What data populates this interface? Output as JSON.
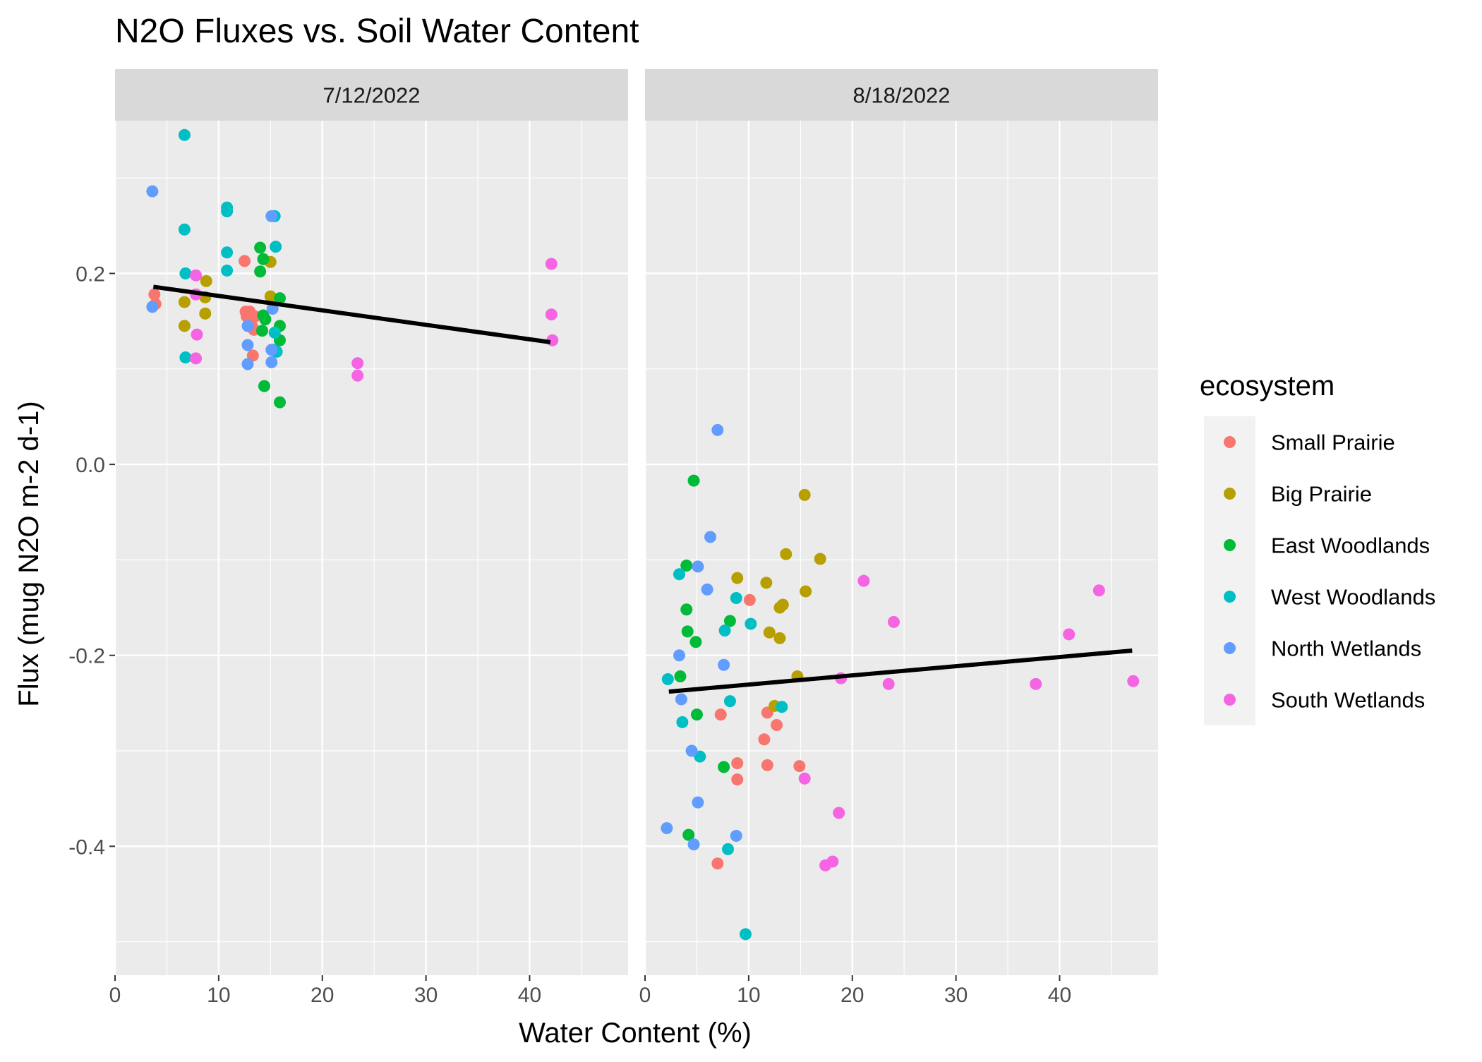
{
  "chart_data": {
    "type": "scatter",
    "title": "N2O Fluxes vs. Soil Water Content",
    "xlabel": "Water Content (%)",
    "ylabel": "Flux (mug N2O m-2 d-1)",
    "xlim": [
      0,
      49.5
    ],
    "ylim": [
      -0.535,
      0.36
    ],
    "x_ticks": [
      0,
      10,
      20,
      30,
      40
    ],
    "y_ticks": [
      -0.4,
      -0.2,
      0.0,
      0.2
    ],
    "x_tick_labels": [
      "0",
      "10",
      "20",
      "30",
      "40"
    ],
    "y_tick_labels": [
      "-0.4",
      "-0.2",
      "0.0",
      "0.2"
    ],
    "grid": true,
    "legend": {
      "title": "ecosystem",
      "position": "right",
      "entries": [
        {
          "name": "Small Prairie",
          "color": "#F8766D"
        },
        {
          "name": "Big Prairie",
          "color": "#B79F00"
        },
        {
          "name": "East Woodlands",
          "color": "#00BA38"
        },
        {
          "name": "West Woodlands",
          "color": "#00BFC4"
        },
        {
          "name": "North Wetlands",
          "color": "#619CFF"
        },
        {
          "name": "South Wetlands",
          "color": "#F564E3"
        }
      ]
    },
    "facets": [
      {
        "label": "7/12/2022",
        "trend_line": {
          "x": [
            3.7,
            42.0
          ],
          "y": [
            0.186,
            0.128
          ]
        },
        "series": [
          {
            "name": "Small Prairie",
            "points": [
              [
                3.8,
                0.178
              ],
              [
                3.9,
                0.168
              ],
              [
                12.5,
                0.213
              ],
              [
                12.6,
                0.16
              ],
              [
                12.7,
                0.155
              ],
              [
                13.0,
                0.16
              ],
              [
                13.2,
                0.145
              ],
              [
                13.4,
                0.141
              ],
              [
                13.3,
                0.114
              ],
              [
                13.5,
                0.155
              ],
              [
                13.0,
                0.15
              ]
            ]
          },
          {
            "name": "Big Prairie",
            "points": [
              [
                6.7,
                0.17
              ],
              [
                6.7,
                0.145
              ],
              [
                8.8,
                0.192
              ],
              [
                8.7,
                0.175
              ],
              [
                8.7,
                0.158
              ],
              [
                15.0,
                0.212
              ],
              [
                15.0,
                0.176
              ]
            ]
          },
          {
            "name": "East Woodlands",
            "points": [
              [
                14.0,
                0.227
              ],
              [
                14.3,
                0.215
              ],
              [
                14.0,
                0.202
              ],
              [
                14.3,
                0.156
              ],
              [
                14.5,
                0.152
              ],
              [
                14.2,
                0.14
              ],
              [
                15.9,
                0.174
              ],
              [
                15.9,
                0.145
              ],
              [
                15.9,
                0.13
              ],
              [
                14.4,
                0.082
              ],
              [
                15.9,
                0.065
              ]
            ]
          },
          {
            "name": "West Woodlands",
            "points": [
              [
                6.7,
                0.345
              ],
              [
                6.7,
                0.246
              ],
              [
                6.8,
                0.2
              ],
              [
                6.8,
                0.112
              ],
              [
                10.8,
                0.269
              ],
              [
                10.8,
                0.265
              ],
              [
                10.8,
                0.222
              ],
              [
                10.8,
                0.203
              ],
              [
                15.4,
                0.26
              ],
              [
                15.5,
                0.228
              ],
              [
                15.4,
                0.138
              ],
              [
                15.3,
                0.12
              ],
              [
                15.6,
                0.118
              ]
            ]
          },
          {
            "name": "North Wetlands",
            "points": [
              [
                3.6,
                0.286
              ],
              [
                3.6,
                0.165
              ],
              [
                12.8,
                0.145
              ],
              [
                12.8,
                0.125
              ],
              [
                12.8,
                0.105
              ],
              [
                15.1,
                0.26
              ],
              [
                15.2,
                0.163
              ],
              [
                15.1,
                0.12
              ],
              [
                15.1,
                0.107
              ]
            ]
          },
          {
            "name": "South Wetlands",
            "points": [
              [
                7.8,
                0.198
              ],
              [
                7.8,
                0.178
              ],
              [
                7.9,
                0.136
              ],
              [
                7.8,
                0.111
              ],
              [
                23.4,
                0.106
              ],
              [
                23.4,
                0.093
              ],
              [
                42.1,
                0.21
              ],
              [
                42.1,
                0.157
              ],
              [
                42.2,
                0.13
              ]
            ]
          }
        ]
      },
      {
        "label": "8/18/2022",
        "trend_line": {
          "x": [
            2.3,
            47.0
          ],
          "y": [
            -0.238,
            -0.195
          ]
        },
        "series": [
          {
            "name": "Small Prairie",
            "points": [
              [
                10.1,
                -0.142
              ],
              [
                7.3,
                -0.262
              ],
              [
                11.8,
                -0.26
              ],
              [
                12.7,
                -0.273
              ],
              [
                11.5,
                -0.288
              ],
              [
                8.9,
                -0.313
              ],
              [
                11.8,
                -0.315
              ],
              [
                14.9,
                -0.316
              ],
              [
                8.9,
                -0.33
              ],
              [
                7.0,
                -0.418
              ]
            ]
          },
          {
            "name": "Big Prairie",
            "points": [
              [
                15.4,
                -0.032
              ],
              [
                13.6,
                -0.094
              ],
              [
                16.9,
                -0.099
              ],
              [
                8.9,
                -0.119
              ],
              [
                11.7,
                -0.124
              ],
              [
                15.5,
                -0.133
              ],
              [
                13.3,
                -0.147
              ],
              [
                13.0,
                -0.15
              ],
              [
                12.0,
                -0.176
              ],
              [
                13.0,
                -0.182
              ],
              [
                14.7,
                -0.222
              ],
              [
                12.5,
                -0.253
              ]
            ]
          },
          {
            "name": "East Woodlands",
            "points": [
              [
                4.7,
                -0.017
              ],
              [
                4.0,
                -0.106
              ],
              [
                4.0,
                -0.152
              ],
              [
                4.1,
                -0.175
              ],
              [
                4.9,
                -0.186
              ],
              [
                8.2,
                -0.164
              ],
              [
                3.4,
                -0.222
              ],
              [
                5.0,
                -0.262
              ],
              [
                7.6,
                -0.317
              ],
              [
                4.2,
                -0.388
              ]
            ]
          },
          {
            "name": "West Woodlands",
            "points": [
              [
                3.3,
                -0.115
              ],
              [
                8.8,
                -0.14
              ],
              [
                10.2,
                -0.167
              ],
              [
                7.7,
                -0.174
              ],
              [
                2.2,
                -0.225
              ],
              [
                8.2,
                -0.248
              ],
              [
                13.2,
                -0.254
              ],
              [
                3.6,
                -0.27
              ],
              [
                5.3,
                -0.306
              ],
              [
                8.0,
                -0.403
              ],
              [
                9.7,
                -0.492
              ]
            ]
          },
          {
            "name": "North Wetlands",
            "points": [
              [
                7.0,
                0.036
              ],
              [
                6.3,
                -0.076
              ],
              [
                5.1,
                -0.107
              ],
              [
                6.0,
                -0.131
              ],
              [
                3.3,
                -0.2
              ],
              [
                7.6,
                -0.21
              ],
              [
                3.5,
                -0.246
              ],
              [
                4.5,
                -0.3
              ],
              [
                5.1,
                -0.354
              ],
              [
                2.1,
                -0.381
              ],
              [
                8.8,
                -0.389
              ],
              [
                4.7,
                -0.398
              ]
            ]
          },
          {
            "name": "South Wetlands",
            "points": [
              [
                21.1,
                -0.122
              ],
              [
                43.8,
                -0.132
              ],
              [
                24.0,
                -0.165
              ],
              [
                40.9,
                -0.178
              ],
              [
                18.9,
                -0.224
              ],
              [
                23.5,
                -0.23
              ],
              [
                37.7,
                -0.23
              ],
              [
                47.1,
                -0.227
              ],
              [
                15.4,
                -0.329
              ],
              [
                18.7,
                -0.365
              ],
              [
                18.1,
                -0.416
              ],
              [
                17.4,
                -0.42
              ]
            ]
          }
        ]
      }
    ]
  }
}
